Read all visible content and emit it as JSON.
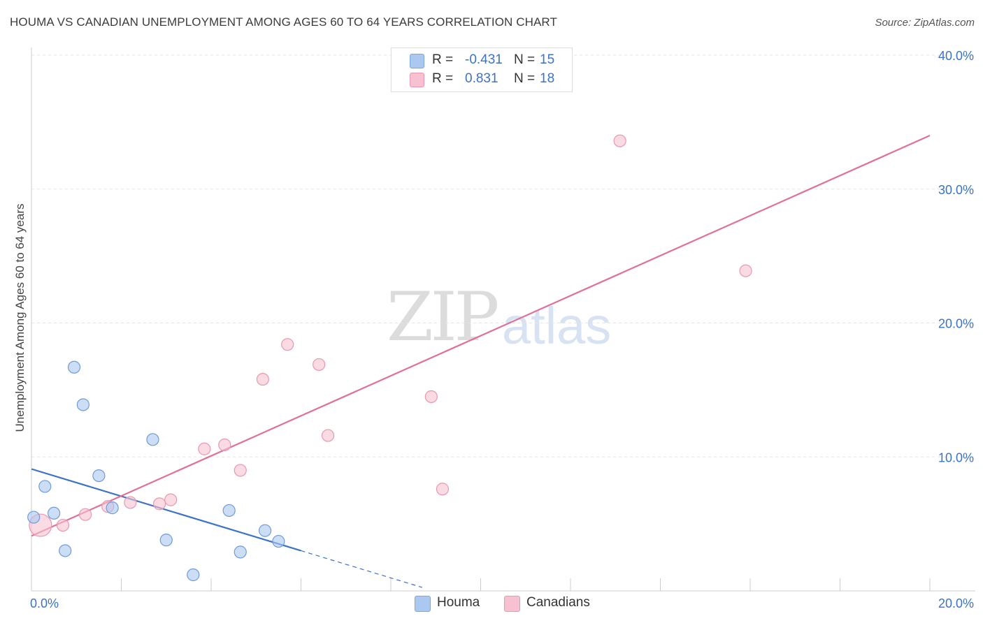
{
  "title": "HOUMA VS CANADIAN UNEMPLOYMENT AMONG AGES 60 TO 64 YEARS CORRELATION CHART",
  "source": "Source: ZipAtlas.com",
  "watermark": {
    "zip": "ZIP",
    "atlas": "atlas"
  },
  "legend": {
    "rows": [
      {
        "r_label": "R =",
        "r_value": "-0.431",
        "n_label": "N =",
        "n_value": "15",
        "color": "#aac8f0",
        "border": "#7ea6dc"
      },
      {
        "r_label": "R =",
        "r_value": "0.831",
        "n_label": "N =",
        "n_value": "18",
        "color": "#f7c1d1",
        "border": "#e897b0"
      }
    ]
  },
  "chart_data": {
    "type": "scatter",
    "title": "HOUMA VS CANADIAN UNEMPLOYMENT AMONG AGES 60 TO 64 YEARS CORRELATION CHART",
    "xlabel": "",
    "ylabel": "Unemployment Among Ages 60 to 64 years",
    "xlim": [
      0,
      20
    ],
    "ylim": [
      0,
      40
    ],
    "x_tick_labels": [
      {
        "value": 0,
        "label": "0.0%"
      },
      {
        "value": 20,
        "label": "20.0%"
      }
    ],
    "y_tick_labels": [
      {
        "value": 10,
        "label": "10.0%"
      },
      {
        "value": 20,
        "label": "20.0%"
      },
      {
        "value": 30,
        "label": "30.0%"
      },
      {
        "value": 40,
        "label": "40.0%"
      }
    ],
    "grid": true,
    "legend_position": "bottom-center",
    "series": [
      {
        "name": "Houma",
        "color": "#aac8f0",
        "edge": "#6f9bd8",
        "line_color": "#3a73c8",
        "points": [
          {
            "x": 0.05,
            "y": 5.5
          },
          {
            "x": 0.3,
            "y": 7.8
          },
          {
            "x": 0.5,
            "y": 5.8
          },
          {
            "x": 0.75,
            "y": 3.0
          },
          {
            "x": 0.95,
            "y": 16.7
          },
          {
            "x": 1.15,
            "y": 13.9
          },
          {
            "x": 1.5,
            "y": 8.6
          },
          {
            "x": 1.8,
            "y": 6.2
          },
          {
            "x": 2.7,
            "y": 11.3
          },
          {
            "x": 3.0,
            "y": 3.8
          },
          {
            "x": 3.6,
            "y": 1.2
          },
          {
            "x": 4.4,
            "y": 6.0
          },
          {
            "x": 4.65,
            "y": 2.9
          },
          {
            "x": 5.2,
            "y": 4.5
          },
          {
            "x": 5.5,
            "y": 3.7
          }
        ],
        "trend": {
          "x1": 0,
          "y1": 9.1,
          "x2": 6.0,
          "y2": 3.0,
          "dash_to_x": 8.7
        }
      },
      {
        "name": "Canadians",
        "color": "#f7c1d1",
        "edge": "#e897b0",
        "line_color": "#e07099",
        "points": [
          {
            "x": 0.2,
            "y": 4.9,
            "big": true
          },
          {
            "x": 0.7,
            "y": 4.9
          },
          {
            "x": 1.2,
            "y": 5.7
          },
          {
            "x": 1.7,
            "y": 6.3
          },
          {
            "x": 2.2,
            "y": 6.6
          },
          {
            "x": 2.85,
            "y": 6.5
          },
          {
            "x": 3.1,
            "y": 6.8
          },
          {
            "x": 3.85,
            "y": 10.6
          },
          {
            "x": 4.3,
            "y": 10.9
          },
          {
            "x": 4.65,
            "y": 9.0
          },
          {
            "x": 5.15,
            "y": 15.8
          },
          {
            "x": 5.7,
            "y": 18.4
          },
          {
            "x": 6.4,
            "y": 16.9
          },
          {
            "x": 6.6,
            "y": 11.6
          },
          {
            "x": 8.9,
            "y": 14.5
          },
          {
            "x": 9.15,
            "y": 7.6
          },
          {
            "x": 13.1,
            "y": 33.6
          },
          {
            "x": 15.9,
            "y": 23.9
          }
        ],
        "trend": {
          "x1": 0,
          "y1": 4.1,
          "x2": 20.0,
          "y2": 34.0
        }
      }
    ]
  }
}
